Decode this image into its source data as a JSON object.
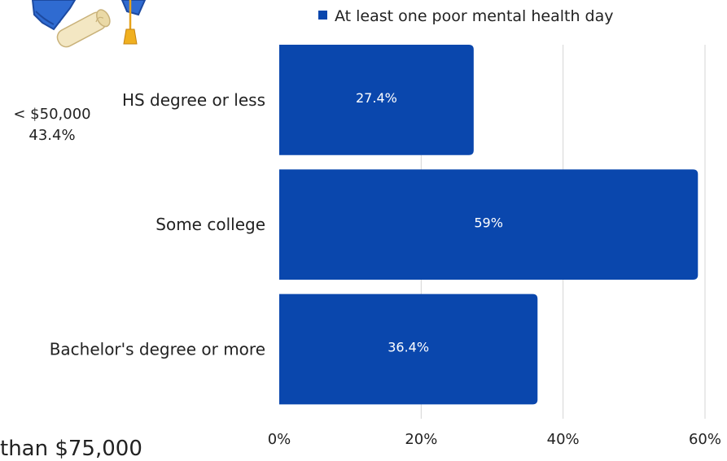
{
  "colors": {
    "bar": "#0a47ad",
    "grid": "#d4d4d4"
  },
  "side_label": {
    "line1": "< $50,000",
    "line2": "43.4%"
  },
  "bottom_fragment": "than $75,000",
  "illustration": {
    "icon": "graduation-cap-diploma-icon"
  },
  "chart_data": {
    "type": "bar",
    "orientation": "horizontal",
    "categories": [
      "HS degree or less",
      "Some college",
      "Bachelor's degree or more"
    ],
    "series": [
      {
        "name": "At least one poor mental health day",
        "values": [
          27.4,
          59,
          36.4
        ]
      }
    ],
    "data_labels": [
      "27.4%",
      "59%",
      "36.4%"
    ],
    "xlim": [
      0,
      60
    ],
    "x_ticks": [
      "0%",
      "20%",
      "40%",
      "60%"
    ],
    "grid": true,
    "legend_position": "top"
  }
}
